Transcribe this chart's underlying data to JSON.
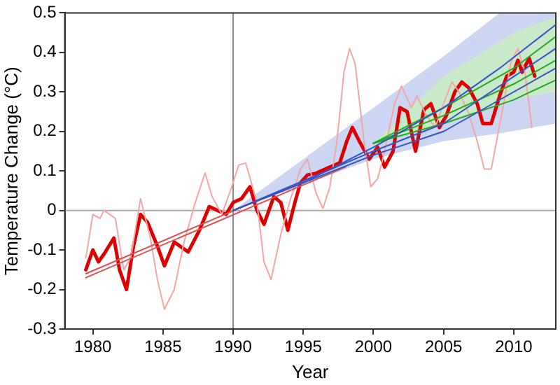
{
  "chart_data": {
    "type": "line",
    "xlabel": "Year",
    "ylabel": "Temperature Change (°C)",
    "xlim": [
      1978,
      2013
    ],
    "ylim": [
      -0.3,
      0.5
    ],
    "xticks": [
      1980,
      1985,
      1990,
      1995,
      2000,
      2005,
      2010
    ],
    "yticks": [
      -0.3,
      -0.2,
      -0.1,
      0,
      0.1,
      0.2,
      0.3,
      0.4,
      0.5
    ],
    "grid": false,
    "legend": false,
    "marker": "none",
    "ref_lines": [
      {
        "axis": "x",
        "value": 1990,
        "color": "#888888"
      },
      {
        "axis": "y",
        "value": 0,
        "color": "#aaaaaa"
      }
    ],
    "series": [
      {
        "color": "#3355cc",
        "x": [
          1990,
          1995,
          2000,
          2005,
          2009,
          2013
        ],
        "values": [
          0,
          0.07,
          0.16,
          0.26,
          0.36,
          0.47
        ],
        "lower": [
          0,
          0.065,
          0.13,
          0.175,
          0.195,
          0.22
        ],
        "upper": [
          0,
          0.13,
          0.26,
          0.39,
          0.5,
          0.5
        ]
      },
      {
        "color": "#3355cc",
        "x": [
          1990,
          2000,
          2005,
          2013
        ],
        "values": [
          0,
          0.15,
          0.22,
          0.41
        ]
      },
      {
        "color": "#3355cc",
        "x": [
          1990,
          2000,
          2005,
          2013
        ],
        "values": [
          0,
          0.14,
          0.2,
          0.36
        ]
      },
      {
        "color": "#22aa22",
        "x": [
          2000,
          2005,
          2010,
          2013
        ],
        "values": [
          0.17,
          0.26,
          0.36,
          0.44
        ],
        "lower": [
          0.17,
          0.22,
          0.28,
          0.3
        ],
        "upper": [
          0.17,
          0.34,
          0.45,
          0.49
        ]
      },
      {
        "color": "#22aa22",
        "x": [
          2000,
          2005,
          2010,
          2013
        ],
        "values": [
          0.17,
          0.24,
          0.32,
          0.38
        ]
      },
      {
        "color": "#22aa22",
        "x": [
          2000,
          2005,
          2010,
          2013
        ],
        "values": [
          0.17,
          0.22,
          0.28,
          0.33
        ]
      },
      {
        "color": "#e05050",
        "x": [
          1979.5,
          1998
        ],
        "values": [
          -0.16,
          0.12
        ]
      },
      {
        "color": "#e05050",
        "x": [
          1979.5,
          1998
        ],
        "values": [
          -0.17,
          0.11
        ]
      },
      {
        "color": "#f4a6a6",
        "x": [
          1979.5,
          1980,
          1980.5,
          1980.8,
          1981.6,
          1982.2,
          1982.7,
          1983.4,
          1984.1,
          1984.6,
          1985.1,
          1985.8,
          1986.5,
          1987.3,
          1988,
          1988.5,
          1989.2,
          1989.9,
          1990.4,
          1990.9,
          1991.7,
          1992.2,
          1992.7,
          1993.4,
          1994.1,
          1994.8,
          1995.3,
          1995.9,
          1996.4,
          1996.9,
          1997.4,
          1997.9,
          1998.3,
          1998.7,
          1999.3,
          1999.8,
          2000.3,
          2000.8,
          2001.5,
          2002,
          2002.7,
          2003.1,
          2003.7,
          2004.4,
          2005.1,
          2005.6,
          2006.1,
          2006.8,
          2007.4,
          2007.9,
          2008.4,
          2009.1,
          2009.8,
          2010.3,
          2010.8,
          2011.3
        ],
        "values": [
          -0.12,
          -0.01,
          -0.02,
          0,
          -0.02,
          -0.15,
          -0.12,
          0.03,
          -0.07,
          -0.175,
          -0.25,
          -0.2,
          -0.08,
          0.02,
          0.095,
          0.035,
          -0.01,
          0.06,
          0.115,
          0.12,
          0.02,
          -0.13,
          -0.175,
          -0.06,
          0.03,
          0.105,
          0.13,
          0.045,
          0.005,
          0.06,
          0.175,
          0.35,
          0.41,
          0.37,
          0.185,
          0.06,
          0.08,
          0.15,
          0.27,
          0.315,
          0.26,
          0.29,
          0.245,
          0.21,
          0.28,
          0.325,
          0.3,
          0.245,
          0.175,
          0.105,
          0.105,
          0.235,
          0.375,
          0.41,
          0.35,
          0.21
        ]
      },
      {
        "color": "#dd0000",
        "x": [
          1979.5,
          1980,
          1980.4,
          1980.8,
          1981.5,
          1981.9,
          1982.4,
          1982.9,
          1983.4,
          1983.9,
          1984.6,
          1985.1,
          1985.8,
          1986.8,
          1987.6,
          1988.3,
          1988.9,
          1989.5,
          1990,
          1990.6,
          1991.2,
          1991.7,
          1992.2,
          1992.9,
          1993.4,
          1993.9,
          1994.4,
          1994.8,
          1995.3,
          1995.9,
          1996.9,
          1997.6,
          1998.1,
          1998.5,
          1999,
          1999.7,
          2000.3,
          2000.8,
          2001.4,
          2001.9,
          2002.4,
          2003,
          2003.6,
          2004.1,
          2004.7,
          2005.2,
          2005.8,
          2006.3,
          2006.8,
          2007.4,
          2007.8,
          2008.4,
          2009,
          2009.5,
          2010,
          2010.3,
          2010.6,
          2011.1,
          2011.5
        ],
        "values": [
          -0.15,
          -0.1,
          -0.13,
          -0.11,
          -0.07,
          -0.15,
          -0.2,
          -0.09,
          -0.01,
          -0.03,
          -0.09,
          -0.14,
          -0.08,
          -0.105,
          -0.05,
          0.01,
          0,
          -0.01,
          0.02,
          0.03,
          0.06,
          0,
          -0.035,
          0.035,
          0.02,
          -0.05,
          0.02,
          0.07,
          0.09,
          0.094,
          0.11,
          0.12,
          0.175,
          0.21,
          0.175,
          0.13,
          0.16,
          0.11,
          0.15,
          0.26,
          0.25,
          0.15,
          0.255,
          0.27,
          0.21,
          0.24,
          0.3,
          0.325,
          0.31,
          0.27,
          0.22,
          0.22,
          0.29,
          0.34,
          0.35,
          0.38,
          0.35,
          0.385,
          0.34
        ]
      }
    ]
  }
}
